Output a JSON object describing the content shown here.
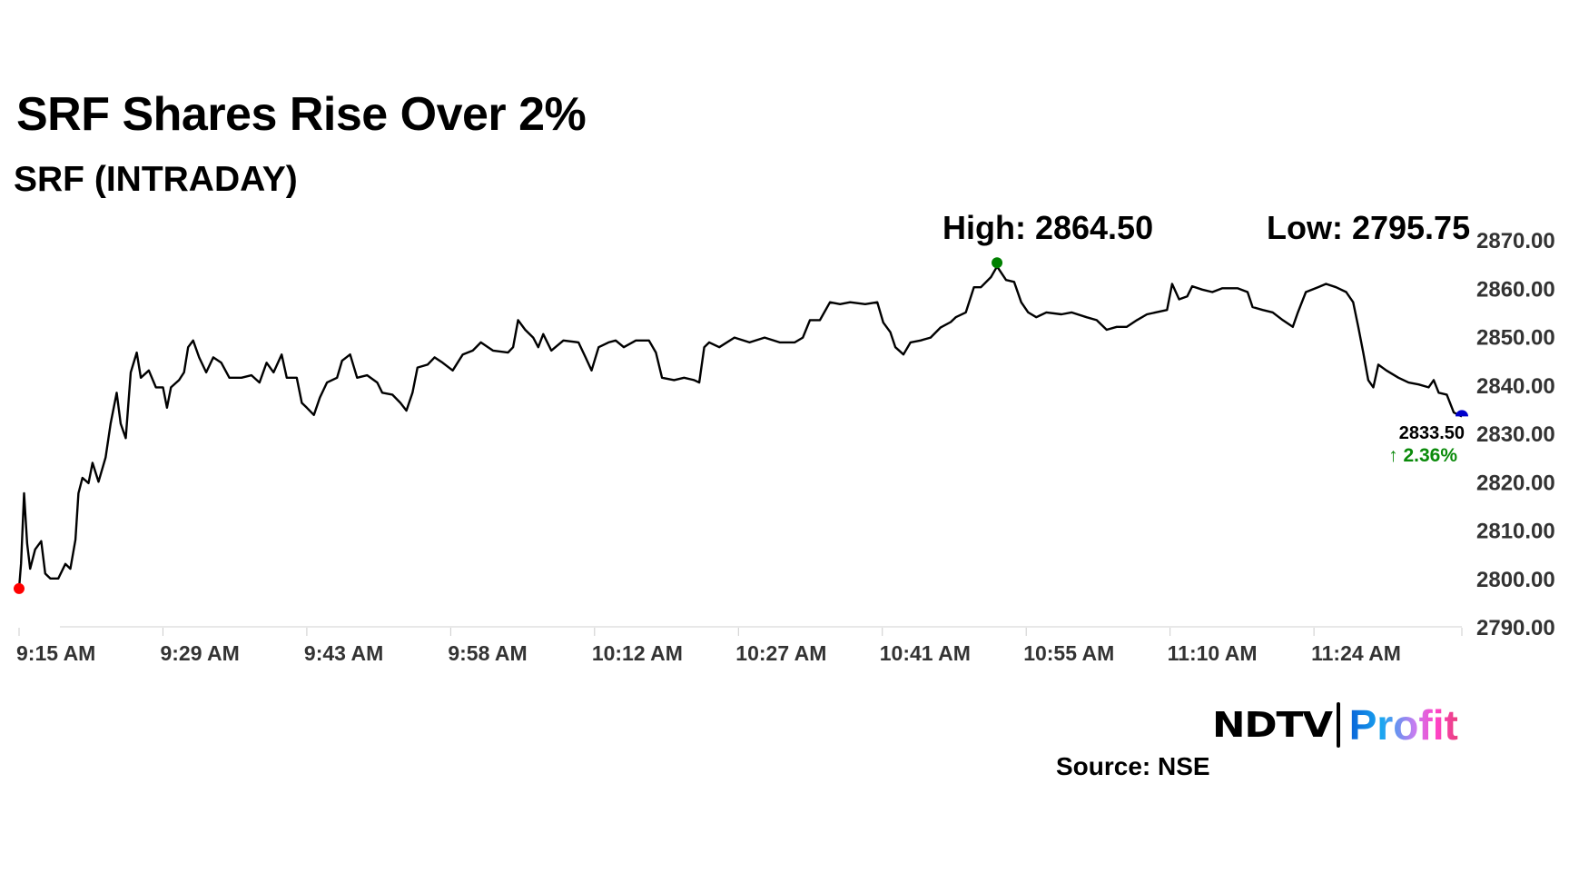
{
  "header": {
    "title": "SRF Shares Rise Over 2%",
    "subtitle": "SRF (INTRADAY)"
  },
  "stats": {
    "high": "High: 2864.50",
    "low": "Low: 2795.75"
  },
  "last": {
    "price": "2833.50",
    "change": "↑ 2.36%"
  },
  "footer": {
    "logo_ndtv": "NDTV",
    "logo_profit": "Profit",
    "source": "Source: NSE"
  },
  "colors": {
    "line": "#000000",
    "start_marker": "#ff0000",
    "high_marker": "#008000",
    "end_marker": "#0000cc",
    "change_up": "#0a8a0a",
    "axis_text": "#333333"
  },
  "chart_data": {
    "type": "line",
    "title": "SRF (INTRADAY)",
    "xlim": [
      "9:15:00",
      "11:38:24"
    ],
    "ylim": [
      2790,
      2870
    ],
    "yticks": [
      "2870.00",
      "2860.00",
      "2850.00",
      "2840.00",
      "2830.00",
      "2820.00",
      "2810.00",
      "2800.00",
      "2790.00"
    ],
    "xticks": [
      "9:15 AM",
      "9:29 AM",
      "9:43 AM",
      "9:58 AM",
      "10:12 AM",
      "10:27 AM",
      "10:41 AM",
      "10:55 AM",
      "11:10 AM",
      "11:24 AM"
    ],
    "grid": false,
    "high": {
      "time": "10:52:12",
      "value": 2864.5
    },
    "series": [
      {
        "points": [
          [
            "9:15:00",
            2797.9
          ],
          [
            "9:15:12",
            2803.1
          ],
          [
            "9:15:30",
            2817.6
          ],
          [
            "9:15:48",
            2807.2
          ],
          [
            "9:16:06",
            2802
          ],
          [
            "9:16:36",
            2806
          ],
          [
            "9:17:12",
            2807.7
          ],
          [
            "9:17:36",
            2801
          ],
          [
            "9:18:06",
            2800
          ],
          [
            "9:18:54",
            2800
          ],
          [
            "9:19:36",
            2803
          ],
          [
            "9:20:06",
            2802
          ],
          [
            "9:20:36",
            2808
          ],
          [
            "9:20:54",
            2817.6
          ],
          [
            "9:21:18",
            2820.8
          ],
          [
            "9:21:54",
            2819.7
          ],
          [
            "9:22:18",
            2823.9
          ],
          [
            "9:22:54",
            2820
          ],
          [
            "9:23:36",
            2825
          ],
          [
            "9:24:06",
            2832
          ],
          [
            "9:24:42",
            2838.4
          ],
          [
            "9:25:06",
            2832
          ],
          [
            "9:25:36",
            2829
          ],
          [
            "9:26:06",
            2842.6
          ],
          [
            "9:26:42",
            2846.7
          ],
          [
            "9:27:06",
            2841.5
          ],
          [
            "9:27:54",
            2843
          ],
          [
            "9:28:36",
            2839.5
          ],
          [
            "9:29:18",
            2839.5
          ],
          [
            "9:29:42",
            2835.3
          ],
          [
            "9:30:06",
            2839.5
          ],
          [
            "9:30:54",
            2841
          ],
          [
            "9:31:24",
            2842.6
          ],
          [
            "9:31:48",
            2847.8
          ],
          [
            "9:32:18",
            2849.2
          ],
          [
            "9:32:54",
            2845.7
          ],
          [
            "9:33:36",
            2842.6
          ],
          [
            "9:34:18",
            2845.7
          ],
          [
            "9:35:06",
            2844.6
          ],
          [
            "9:35:54",
            2841.5
          ],
          [
            "9:37:06",
            2841.5
          ],
          [
            "9:38:06",
            2842
          ],
          [
            "9:38:54",
            2840.5
          ],
          [
            "9:39:36",
            2844.6
          ],
          [
            "9:40:18",
            2842.6
          ],
          [
            "9:41:06",
            2846.3
          ],
          [
            "9:41:36",
            2841.5
          ],
          [
            "9:42:36",
            2841.5
          ],
          [
            "9:43:06",
            2836.3
          ],
          [
            "9:43:36",
            2835.3
          ],
          [
            "9:44:18",
            2833.8
          ],
          [
            "9:44:54",
            2837.4
          ],
          [
            "9:45:36",
            2840.5
          ],
          [
            "9:46:36",
            2841.5
          ],
          [
            "9:47:06",
            2845
          ],
          [
            "9:47:54",
            2846.3
          ],
          [
            "9:48:36",
            2841.5
          ],
          [
            "9:49:36",
            2842
          ],
          [
            "9:50:36",
            2840.5
          ],
          [
            "9:51:06",
            2838.4
          ],
          [
            "9:52:06",
            2838
          ],
          [
            "9:52:54",
            2836.3
          ],
          [
            "9:53:30",
            2834.7
          ],
          [
            "9:54:06",
            2838.4
          ],
          [
            "9:54:36",
            2843.6
          ],
          [
            "9:55:36",
            2844.2
          ],
          [
            "9:56:18",
            2845.7
          ],
          [
            "9:57:06",
            2844.6
          ],
          [
            "9:58:06",
            2843
          ],
          [
            "9:59:06",
            2846.3
          ],
          [
            "10:00:06",
            2847.1
          ],
          [
            "10:00:54",
            2848.8
          ],
          [
            "10:02:06",
            2847.1
          ],
          [
            "10:03:36",
            2846.7
          ],
          [
            "10:04:06",
            2847.8
          ],
          [
            "10:04:36",
            2853.4
          ],
          [
            "10:05:18",
            2851.4
          ],
          [
            "10:06:06",
            2849.8
          ],
          [
            "10:06:36",
            2847.8
          ],
          [
            "10:07:06",
            2850.5
          ],
          [
            "10:07:54",
            2847.1
          ],
          [
            "10:09:06",
            2849.2
          ],
          [
            "10:10:36",
            2848.8
          ],
          [
            "10:11:18",
            2845.7
          ],
          [
            "10:11:54",
            2843
          ],
          [
            "10:12:36",
            2847.8
          ],
          [
            "10:13:36",
            2848.8
          ],
          [
            "10:14:18",
            2849.2
          ],
          [
            "10:15:06",
            2847.8
          ],
          [
            "10:16:18",
            2849.2
          ],
          [
            "10:17:36",
            2849.2
          ],
          [
            "10:18:18",
            2846.7
          ],
          [
            "10:18:54",
            2841.5
          ],
          [
            "10:20:06",
            2841
          ],
          [
            "10:21:06",
            2841.5
          ],
          [
            "10:22:06",
            2841
          ],
          [
            "10:22:36",
            2840.5
          ],
          [
            "10:23:06",
            2847.8
          ],
          [
            "10:23:36",
            2848.8
          ],
          [
            "10:24:36",
            2847.8
          ],
          [
            "10:26:06",
            2849.8
          ],
          [
            "10:27:36",
            2848.8
          ],
          [
            "10:29:06",
            2849.8
          ],
          [
            "10:30:36",
            2848.8
          ],
          [
            "10:32:06",
            2848.8
          ],
          [
            "10:32:54",
            2849.8
          ],
          [
            "10:33:36",
            2853.4
          ],
          [
            "10:34:36",
            2853.4
          ],
          [
            "10:35:36",
            2857.1
          ],
          [
            "10:36:36",
            2856.7
          ],
          [
            "10:37:36",
            2857.1
          ],
          [
            "10:39:06",
            2856.7
          ],
          [
            "10:40:18",
            2857.1
          ],
          [
            "10:40:54",
            2852.9
          ],
          [
            "10:41:36",
            2850.9
          ],
          [
            "10:42:06",
            2847.8
          ],
          [
            "10:42:54",
            2846.3
          ],
          [
            "10:43:36",
            2848.8
          ],
          [
            "10:44:36",
            2849.2
          ],
          [
            "10:45:36",
            2849.8
          ],
          [
            "10:46:36",
            2851.9
          ],
          [
            "10:47:36",
            2853
          ],
          [
            "10:48:06",
            2854
          ],
          [
            "10:49:06",
            2855
          ],
          [
            "10:49:54",
            2860.2
          ],
          [
            "10:50:36",
            2860.2
          ],
          [
            "10:51:36",
            2862.3
          ],
          [
            "10:52:12",
            2864.5
          ],
          [
            "10:53:06",
            2861.7
          ],
          [
            "10:53:54",
            2861.3
          ],
          [
            "10:54:36",
            2857.1
          ],
          [
            "10:55:18",
            2855
          ],
          [
            "10:56:06",
            2854
          ],
          [
            "10:57:06",
            2855
          ],
          [
            "10:58:36",
            2854.6
          ],
          [
            "10:59:36",
            2855
          ],
          [
            "11:01:06",
            2854
          ],
          [
            "11:02:06",
            2853.4
          ],
          [
            "11:03:06",
            2851.4
          ],
          [
            "11:04:06",
            2852
          ],
          [
            "11:05:06",
            2852
          ],
          [
            "11:06:06",
            2853.4
          ],
          [
            "11:07:06",
            2854.6
          ],
          [
            "11:09:06",
            2855.5
          ],
          [
            "11:09:36",
            2860.9
          ],
          [
            "11:10:18",
            2857.7
          ],
          [
            "11:11:06",
            2858.3
          ],
          [
            "11:11:36",
            2860.4
          ],
          [
            "11:12:36",
            2859.7
          ],
          [
            "11:13:36",
            2859.2
          ],
          [
            "11:14:36",
            2860
          ],
          [
            "11:16:06",
            2860
          ],
          [
            "11:17:06",
            2859.2
          ],
          [
            "11:17:36",
            2856.1
          ],
          [
            "11:18:36",
            2855.5
          ],
          [
            "11:19:36",
            2855
          ],
          [
            "11:20:36",
            2853.4
          ],
          [
            "11:21:36",
            2852
          ],
          [
            "11:22:06",
            2855
          ],
          [
            "11:22:54",
            2859.2
          ],
          [
            "11:24:06",
            2860.2
          ],
          [
            "11:24:54",
            2860.9
          ],
          [
            "11:25:54",
            2860.2
          ],
          [
            "11:26:54",
            2859.2
          ],
          [
            "11:27:36",
            2857.1
          ],
          [
            "11:28:06",
            2852
          ],
          [
            "11:28:36",
            2846.7
          ],
          [
            "11:29:06",
            2841
          ],
          [
            "11:29:36",
            2839.5
          ],
          [
            "11:30:06",
            2844.2
          ],
          [
            "11:30:54",
            2843
          ],
          [
            "11:32:06",
            2841.5
          ],
          [
            "11:33:06",
            2840.5
          ],
          [
            "11:34:06",
            2840.1
          ],
          [
            "11:35:06",
            2839.5
          ],
          [
            "11:35:36",
            2841
          ],
          [
            "11:36:06",
            2838.4
          ],
          [
            "11:36:54",
            2838
          ],
          [
            "11:37:36",
            2834.3
          ],
          [
            "11:38:24",
            2833.5
          ]
        ]
      }
    ]
  }
}
